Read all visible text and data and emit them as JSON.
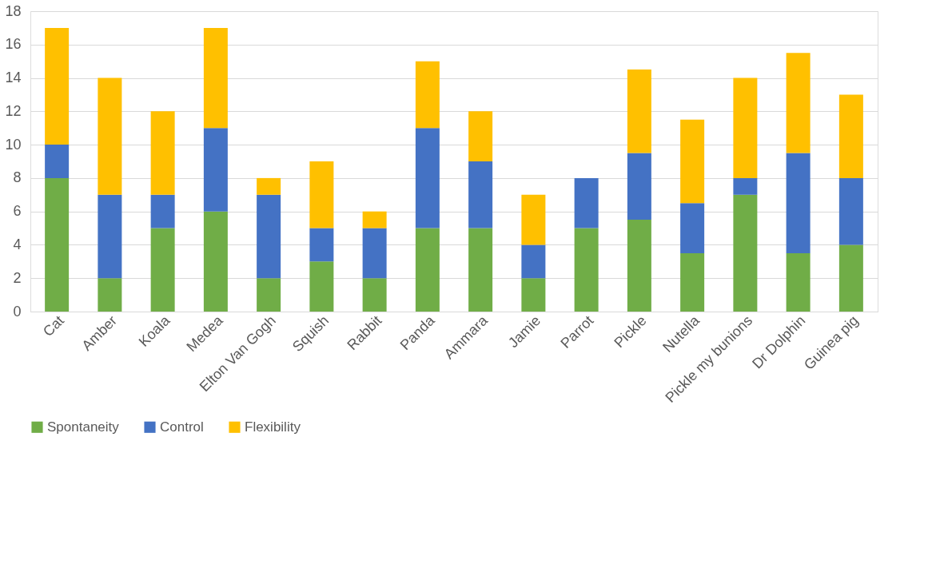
{
  "chart_data": {
    "type": "bar",
    "stacked": true,
    "categories": [
      "Cat",
      "Amber",
      "Koala",
      "Medea",
      "Elton Van Gogh",
      "Squish",
      "Rabbit",
      "Panda",
      "Ammara",
      "Jamie",
      "Parrot",
      "Pickle",
      "Nutella",
      "Pickle my bunions",
      "Dr Dolphin",
      "Guinea pig"
    ],
    "series": [
      {
        "name": "Spontaneity",
        "color": "#70ad47",
        "values": [
          8,
          2,
          5,
          6,
          2,
          3,
          2,
          5,
          5,
          2,
          5,
          5.5,
          3.5,
          7,
          3.5,
          4
        ]
      },
      {
        "name": "Control",
        "color": "#4472c4",
        "values": [
          2,
          5,
          2,
          5,
          5,
          2,
          3,
          6,
          4,
          2,
          3,
          4,
          3,
          1,
          6,
          4
        ]
      },
      {
        "name": "Flexibility",
        "color": "#ffc000",
        "values": [
          7,
          7,
          5,
          6,
          1,
          4,
          1,
          4,
          3,
          3,
          0,
          5,
          5,
          6,
          6,
          5
        ]
      }
    ],
    "ylim": [
      0,
      18
    ],
    "yticks": [
      0,
      2,
      4,
      6,
      8,
      10,
      12,
      14,
      16,
      18
    ],
    "grid": "y",
    "legend": "bottom"
  }
}
